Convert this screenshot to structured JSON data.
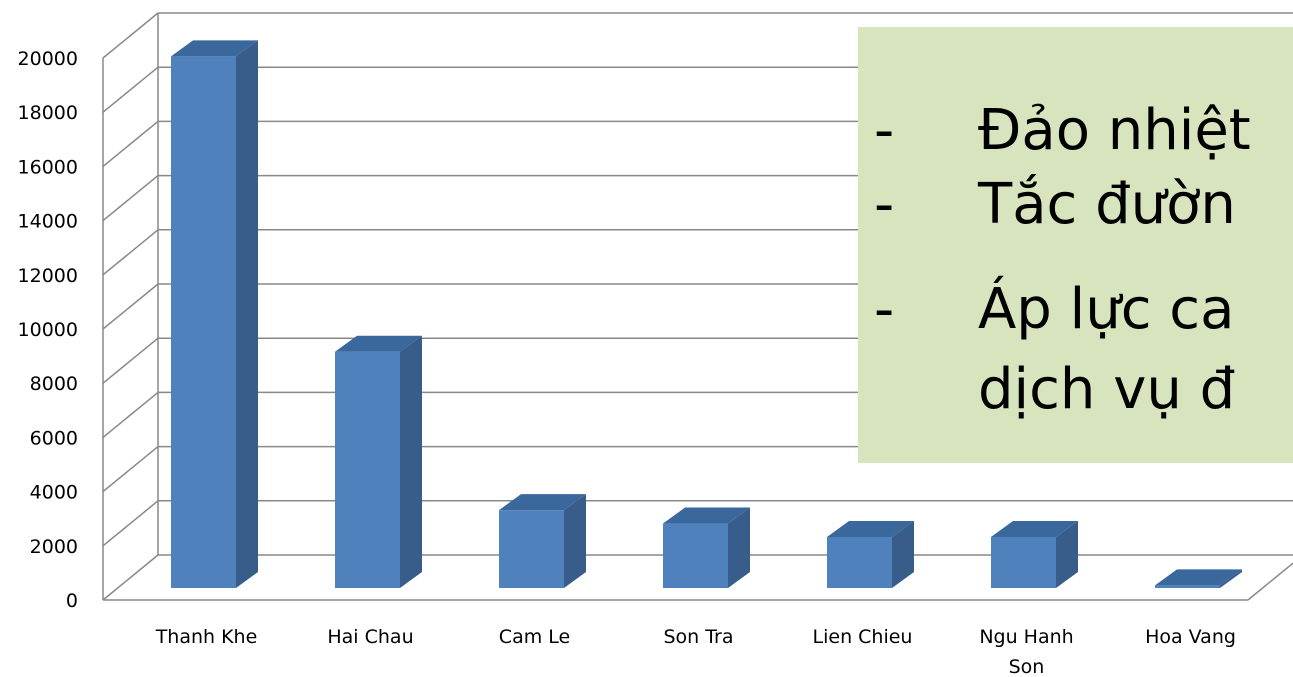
{
  "chart_data": {
    "type": "bar",
    "categories": [
      "Thanh Khe",
      "Hai Chau",
      "Cam Le",
      "Son Tra",
      "Lien Chieu",
      "Ngu Hanh Son",
      "Hoa Vang"
    ],
    "values": [
      19800,
      8800,
      2900,
      2400,
      1900,
      1900,
      100
    ],
    "ylim": [
      0,
      20000
    ],
    "yticks": [
      0,
      2000,
      4000,
      6000,
      8000,
      10000,
      12000,
      14000,
      16000,
      18000,
      20000
    ],
    "grid": true,
    "style": "3d-column",
    "colors": {
      "front": "#4f81bd",
      "side": "#385d8a",
      "top": "#3a679c",
      "grid": "#888888"
    }
  },
  "callout": {
    "background": "#d7e4bd",
    "lines": [
      {
        "bullet": "-",
        "text": "Đảo nhiệt"
      },
      {
        "bullet": "-",
        "text": "Tắc đườn"
      },
      {
        "bullet": "-",
        "text": "Áp lực ca"
      },
      {
        "bullet": "",
        "text": "dịch vụ đ"
      }
    ]
  }
}
